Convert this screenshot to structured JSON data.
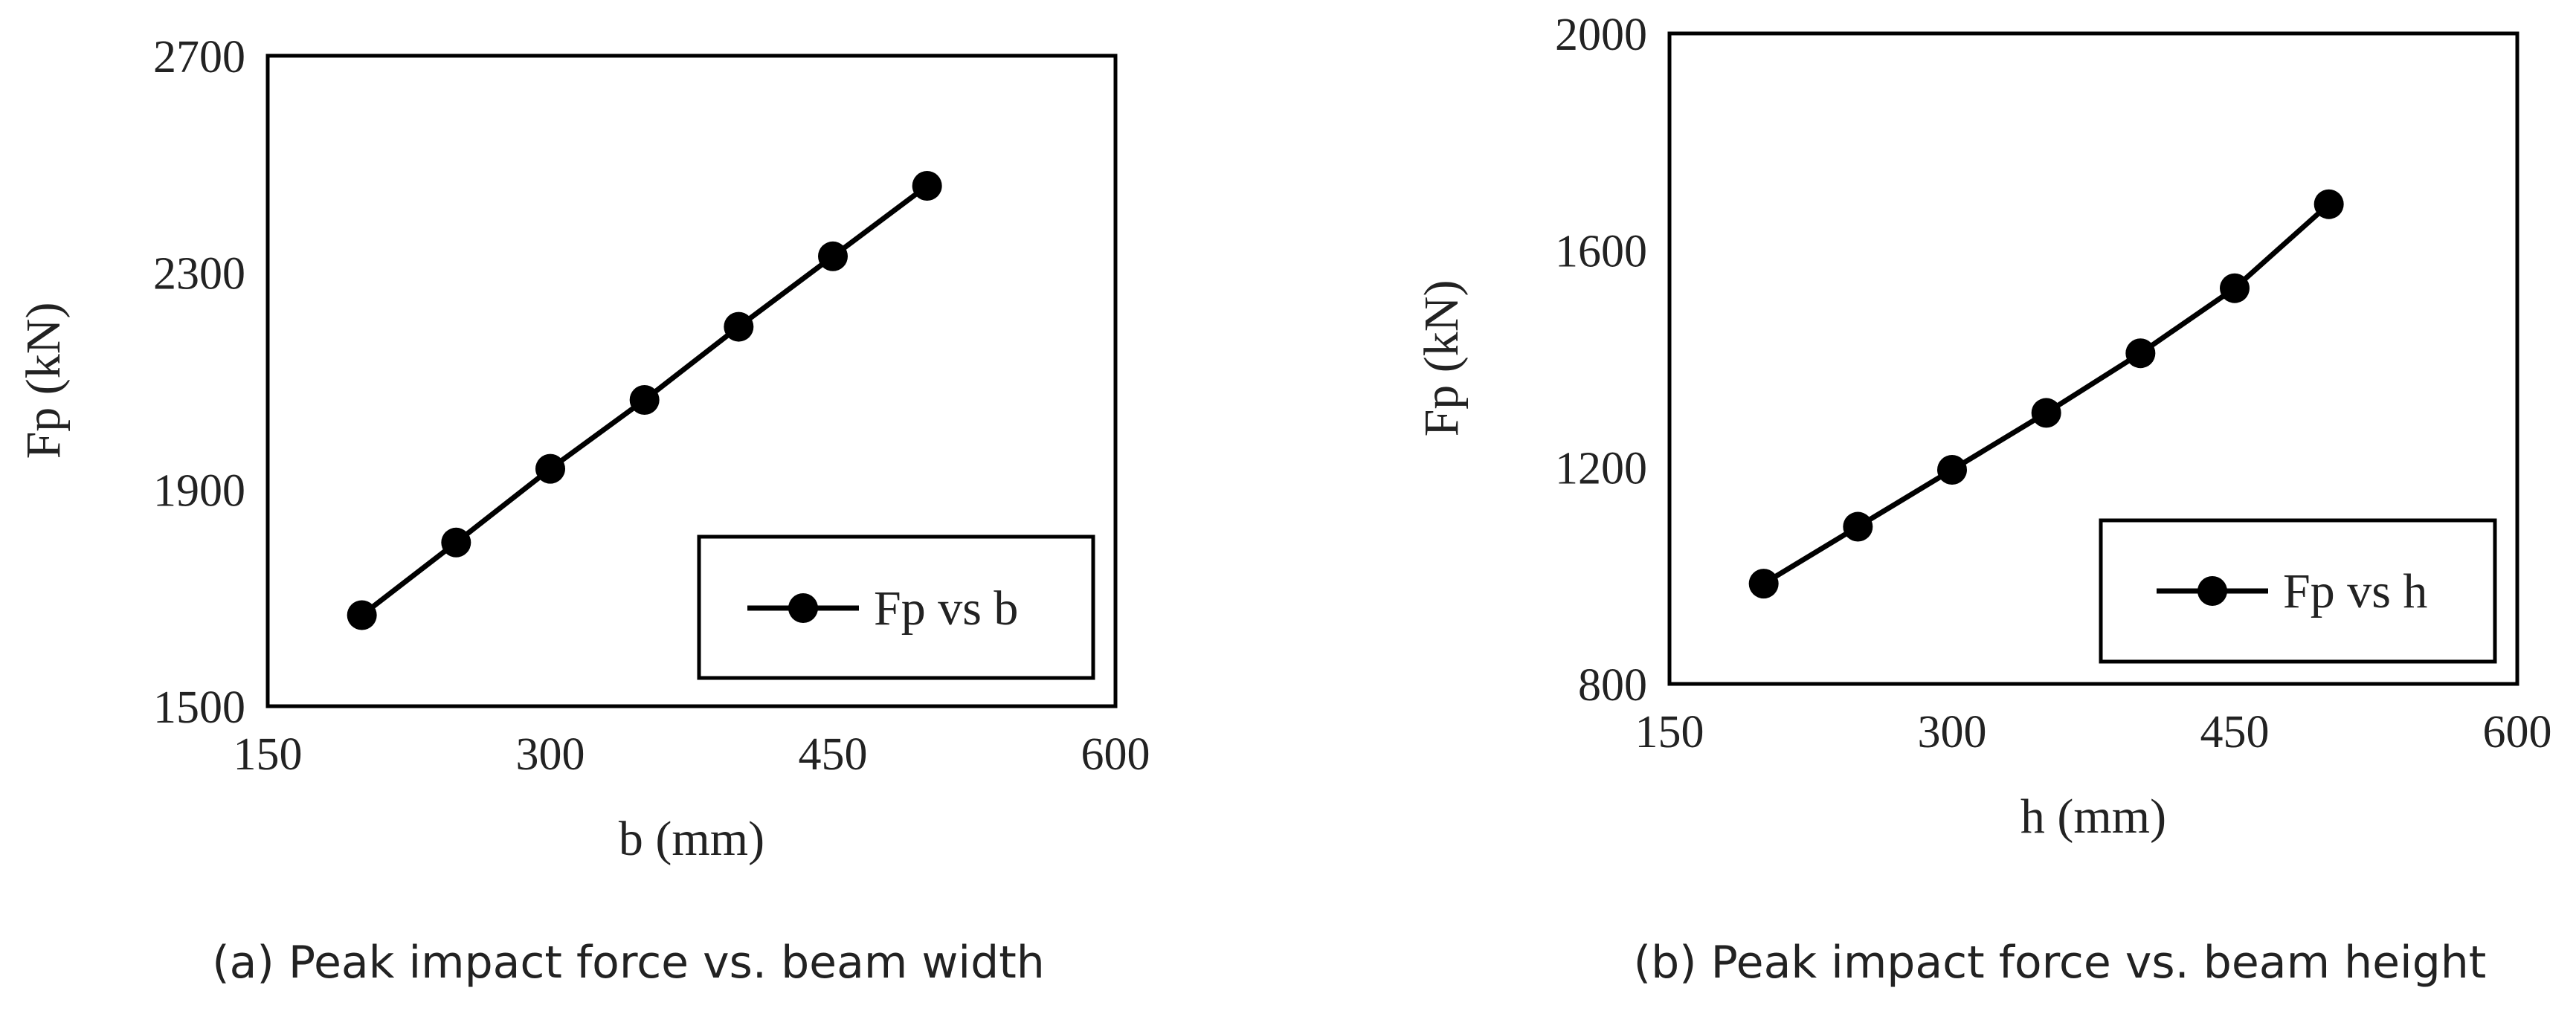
{
  "chart_data": [
    {
      "type": "line",
      "caption": "(a) Peak impact force vs. beam width",
      "xlabel": "b (mm)",
      "ylabel": "Fp (kN)",
      "xlim": [
        150,
        600
      ],
      "ylim": [
        1500,
        2700
      ],
      "xticks": [
        150,
        300,
        450,
        600
      ],
      "yticks": [
        1500,
        1900,
        2300,
        2700
      ],
      "grid": false,
      "legend_position": "bottom-right",
      "series": [
        {
          "name": "Fp vs b",
          "color": "#000000",
          "marker": "circle",
          "x": [
            200,
            250,
            300,
            350,
            400,
            450,
            500
          ],
          "y": [
            1668,
            1802,
            1938,
            2065,
            2200,
            2330,
            2460
          ]
        }
      ]
    },
    {
      "type": "line",
      "caption": "(b) Peak impact force vs. beam height",
      "xlabel": "h (mm)",
      "ylabel": "Fp (kN)",
      "xlim": [
        150,
        600
      ],
      "ylim": [
        800,
        2000
      ],
      "xticks": [
        150,
        300,
        450,
        600
      ],
      "yticks": [
        800,
        1200,
        1600,
        2000
      ],
      "grid": false,
      "legend_position": "bottom-right",
      "series": [
        {
          "name": "Fp vs h",
          "color": "#000000",
          "marker": "circle",
          "x": [
            200,
            250,
            300,
            350,
            400,
            450,
            500
          ],
          "y": [
            985,
            1090,
            1195,
            1300,
            1410,
            1530,
            1685
          ]
        }
      ]
    }
  ]
}
